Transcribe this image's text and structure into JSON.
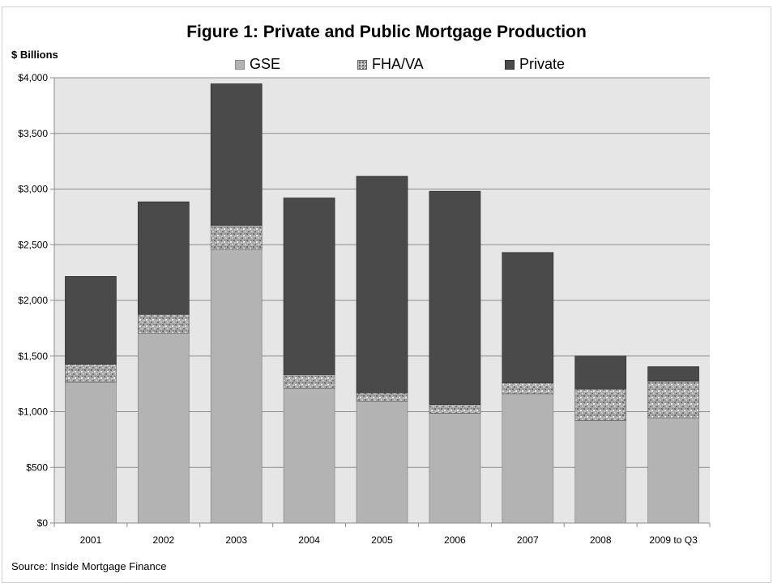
{
  "chart_data": {
    "type": "bar",
    "stacked": true,
    "title": "Figure 1: Private and Public Mortgage Production",
    "ylabel": "$ Billions",
    "xlabel": "",
    "categories": [
      "2001",
      "2002",
      "2003",
      "2004",
      "2005",
      "2006",
      "2007",
      "2008",
      "2009 to Q3"
    ],
    "series": [
      {
        "name": "GSE",
        "color": "#b3b3b3",
        "pattern": "solid",
        "values": [
          1265,
          1705,
          2460,
          1210,
          1095,
          985,
          1160,
          920,
          945
        ]
      },
      {
        "name": "FHA/VA",
        "color": "#a0a0a0",
        "pattern": "speckled",
        "values": [
          160,
          170,
          215,
          125,
          75,
          80,
          100,
          285,
          330
        ]
      },
      {
        "name": "Private",
        "color": "#4a4a4a",
        "pattern": "solid",
        "values": [
          790,
          1010,
          1270,
          1585,
          1945,
          1915,
          1170,
          295,
          130
        ]
      }
    ],
    "ylim": [
      0,
      4000
    ],
    "yticks": [
      0,
      500,
      1000,
      1500,
      2000,
      2500,
      3000,
      3500,
      4000
    ],
    "ytick_labels": [
      "$0",
      "$500",
      "$1,000",
      "$1,500",
      "$2,000",
      "$2,500",
      "$3,000",
      "$3,500",
      "$4,000"
    ],
    "grid": true,
    "legend_position": "top",
    "plot_background": "#e6e6e6",
    "source": "Source: Inside Mortgage Finance"
  }
}
